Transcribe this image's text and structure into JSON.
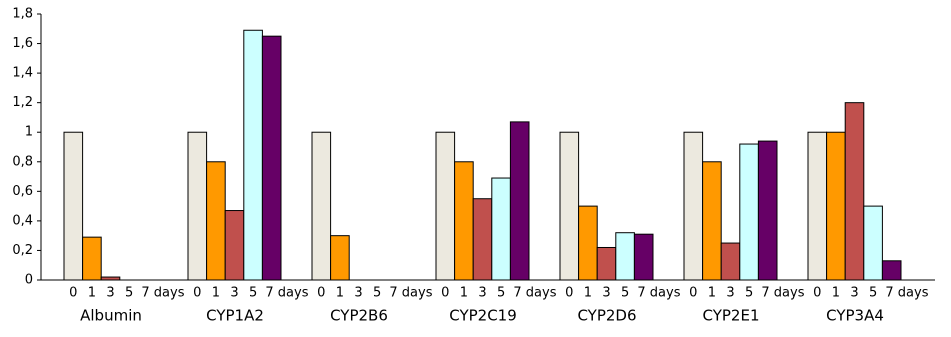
{
  "chart_data": {
    "type": "bar",
    "categories": [
      "Albumin",
      "CYP1A2",
      "CYP2B6",
      "CYP2C19",
      "CYP2D6",
      "CYP2E1",
      "CYP3A4"
    ],
    "series": [
      {
        "name": "0",
        "color": "#ece9df",
        "values": [
          1,
          1,
          1,
          1,
          1,
          1,
          1
        ]
      },
      {
        "name": "1",
        "color": "#ff9900",
        "values": [
          0.29,
          0.8,
          0.3,
          0.8,
          0.5,
          0.8,
          1
        ]
      },
      {
        "name": "3",
        "color": "#c0504d",
        "values": [
          0.02,
          0.47,
          0,
          0.55,
          0.22,
          0.25,
          1.2
        ]
      },
      {
        "name": "5",
        "color": "#ccffff",
        "values": [
          0,
          1.69,
          0,
          0.69,
          0.32,
          0.92,
          0.5
        ]
      },
      {
        "name": "7 days",
        "color": "#660066",
        "values": [
          0,
          1.65,
          0,
          1.07,
          0.31,
          0.94,
          0.13
        ]
      }
    ],
    "ylim": [
      0,
      1.8
    ],
    "yticks": [
      0,
      {
        "value": 0.2,
        "label": "0,2"
      },
      {
        "value": 0.4,
        "label": "0,4"
      },
      {
        "value": 0.6,
        "label": "0,6"
      },
      {
        "value": 0.8,
        "label": "0,8"
      },
      1,
      {
        "value": 1.2,
        "label": "1,2"
      },
      {
        "value": 1.4,
        "label": "1,4"
      },
      {
        "value": 1.6,
        "label": "1,6"
      },
      {
        "value": 1.8,
        "label": "1,8"
      }
    ],
    "grid": false
  }
}
